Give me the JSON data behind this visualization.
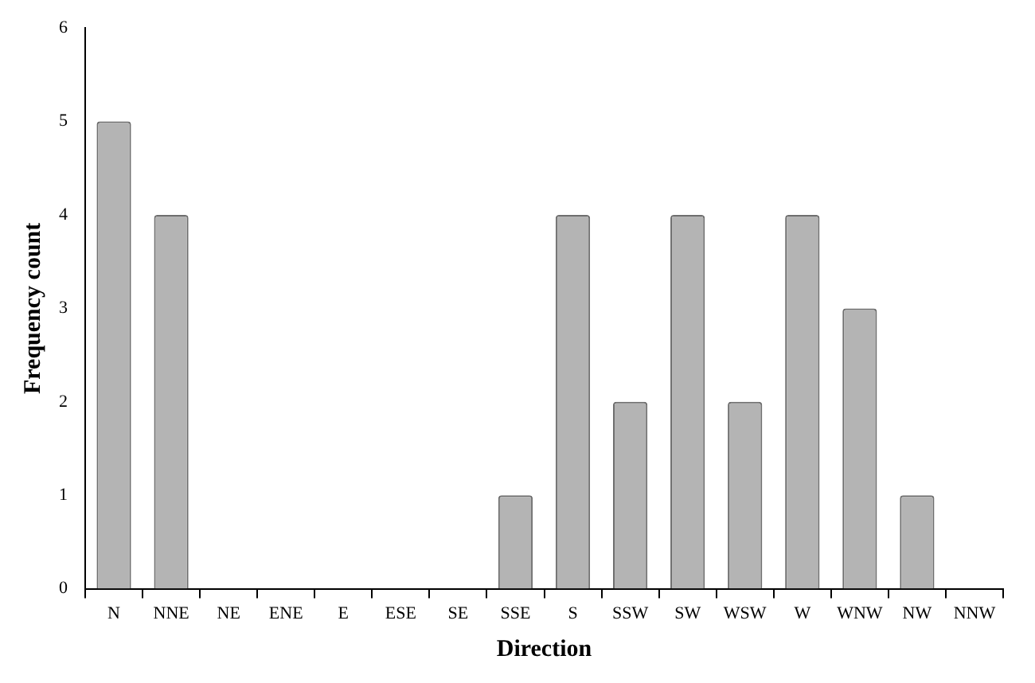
{
  "chart_data": {
    "type": "bar",
    "xlabel": "Direction",
    "ylabel": "Frequency count",
    "categories": [
      "N",
      "NNE",
      "NE",
      "ENE",
      "E",
      "ESE",
      "SE",
      "SSE",
      "S",
      "SSW",
      "SW",
      "WSW",
      "W",
      "WNW",
      "NW",
      "NNW"
    ],
    "values": [
      5,
      4,
      0,
      0,
      0,
      0,
      0,
      1,
      4,
      2,
      4,
      2,
      4,
      3,
      1,
      0
    ],
    "color": "#b4b4b4",
    "ylim": [
      0,
      6
    ],
    "yticks": [
      0,
      1,
      2,
      3,
      4,
      5,
      6
    ],
    "grid": false,
    "legend": false
  }
}
